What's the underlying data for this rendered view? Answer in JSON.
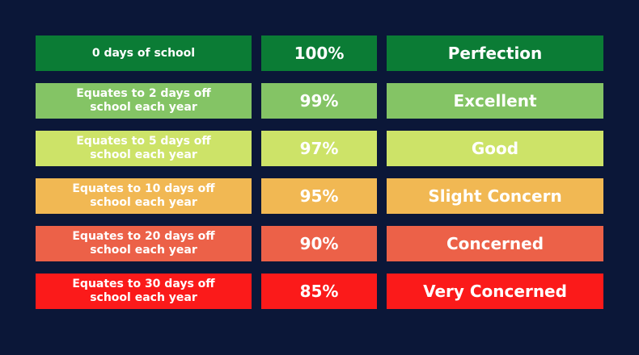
{
  "rows": [
    {
      "days": "0 days of school",
      "percent": "100%",
      "rating": "Perfection",
      "color": "#0b7c35"
    },
    {
      "days": "Equates to 2 days off\nschool each year",
      "percent": "99%",
      "rating": "Excellent",
      "color": "#84c465"
    },
    {
      "days": "Equates to 5 days off\nschool each year",
      "percent": "97%",
      "rating": "Good",
      "color": "#cde368"
    },
    {
      "days": "Equates to 10 days off\nschool each year",
      "percent": "95%",
      "rating": "Slight Concern",
      "color": "#f1b853"
    },
    {
      "days": "Equates to 20 days off\nschool each year",
      "percent": "90%",
      "rating": "Concerned",
      "color": "#ec6148"
    },
    {
      "days": "Equates to 30 days off\nschool each year",
      "percent": "85%",
      "rating": "Very Concerned",
      "color": "#fb1a1a"
    }
  ],
  "background_color": "#0b1738"
}
